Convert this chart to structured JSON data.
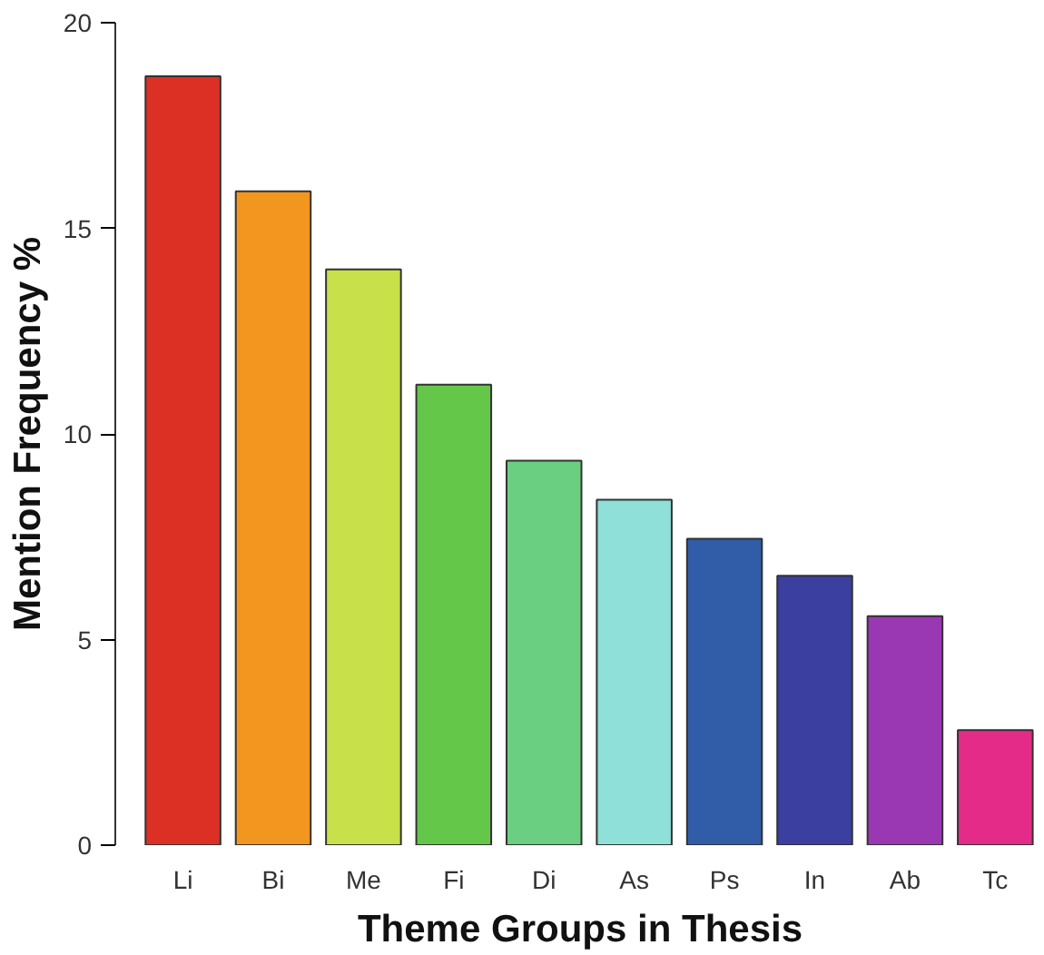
{
  "chart_data": {
    "type": "bar",
    "xlabel": "Theme Groups in Thesis",
    "ylabel": "Mention Frequency %",
    "categories": [
      "Li",
      "Bi",
      "Me",
      "Fi",
      "Di",
      "As",
      "Ps",
      "In",
      "Ab",
      "Tc"
    ],
    "values": [
      18.7,
      15.9,
      14.0,
      11.2,
      9.35,
      8.4,
      7.45,
      6.55,
      5.57,
      2.8
    ],
    "colors": [
      "#dc3024",
      "#f29620",
      "#c8e04a",
      "#64c74a",
      "#6acf80",
      "#8ee0d8",
      "#305ca8",
      "#3a3fa0",
      "#9a38b4",
      "#e42b88"
    ],
    "ylim": [
      0,
      20
    ],
    "yticks": [
      0,
      5,
      10,
      15,
      20
    ],
    "grid": false
  }
}
